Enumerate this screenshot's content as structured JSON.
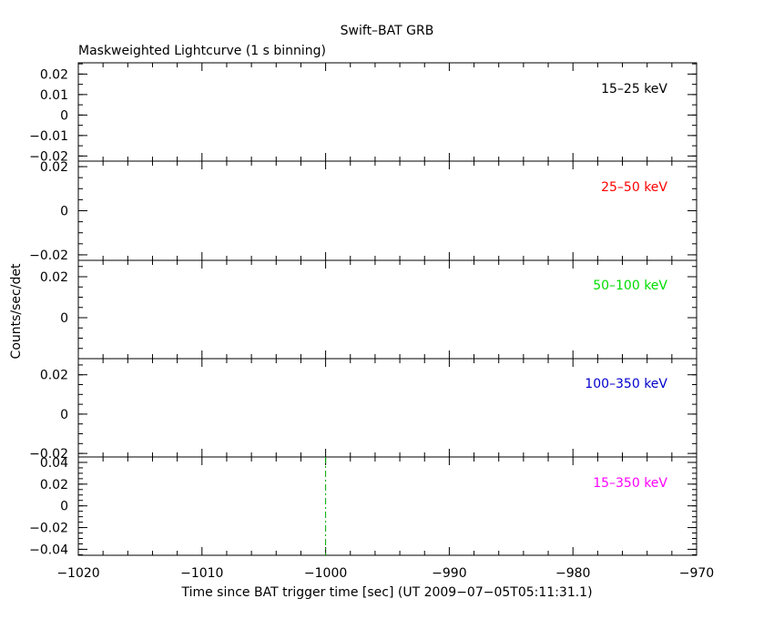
{
  "figure": {
    "title": "Swift–BAT GRB",
    "subtitle": "Maskweighted Lightcurve (1 s binning)",
    "ylabel": "Counts/sec/det",
    "xlabel": "Time since BAT trigger time [sec] (UT 2009−07−05T05:11:31.1)"
  },
  "chart_data": [
    {
      "type": "line",
      "band_label": "15–25 keV",
      "color": "#000000",
      "xlim": [
        -1020,
        -970
      ],
      "ylim": [
        -0.0225,
        0.0255
      ],
      "yticks": [
        -0.02,
        -0.01,
        0,
        0.01,
        0.02
      ],
      "ytick_labels": [
        "−0.02",
        "−0.01",
        "0",
        "0.01",
        "0.02"
      ],
      "series": []
    },
    {
      "type": "line",
      "band_label": "25–50 keV",
      "color": "#ff0000",
      "xlim": [
        -1020,
        -970
      ],
      "ylim": [
        -0.0225,
        0.0225
      ],
      "yticks": [
        -0.02,
        0,
        0.02
      ],
      "ytick_labels": [
        "−0.02",
        "0",
        "0.02"
      ],
      "series": []
    },
    {
      "type": "line",
      "band_label": "50–100 keV",
      "color": "#00dd00",
      "xlim": [
        -1020,
        -970
      ],
      "ylim": [
        -0.02,
        0.028
      ],
      "yticks": [
        0,
        0.02
      ],
      "ytick_labels": [
        "0",
        "0.02"
      ],
      "series": []
    },
    {
      "type": "line",
      "band_label": "100–350 keV",
      "color": "#0000cc",
      "xlim": [
        -1020,
        -970
      ],
      "ylim": [
        -0.0218,
        0.0282
      ],
      "yticks": [
        -0.02,
        0,
        0.02
      ],
      "ytick_labels": [
        "−0.02",
        "0",
        "0.02"
      ],
      "series": []
    },
    {
      "type": "line",
      "band_label": "15–350 keV",
      "color": "#ff00ff",
      "xlim": [
        -1020,
        -970
      ],
      "ylim": [
        -0.0455,
        0.045
      ],
      "yticks": [
        -0.04,
        -0.02,
        0,
        0.02,
        0.04
      ],
      "ytick_labels": [
        "−0.04",
        "−0.02",
        "0",
        "0.02",
        "0.04"
      ],
      "xticks": [
        -1020,
        -1010,
        -1000,
        -990,
        -980,
        -970
      ],
      "xtick_labels": [
        "−1020",
        "−1010",
        "−1000",
        "−990",
        "−980",
        "−970"
      ],
      "series": [],
      "marker_line": {
        "x": -1000,
        "color": "#00aa00",
        "style": "dash-dot"
      }
    }
  ]
}
